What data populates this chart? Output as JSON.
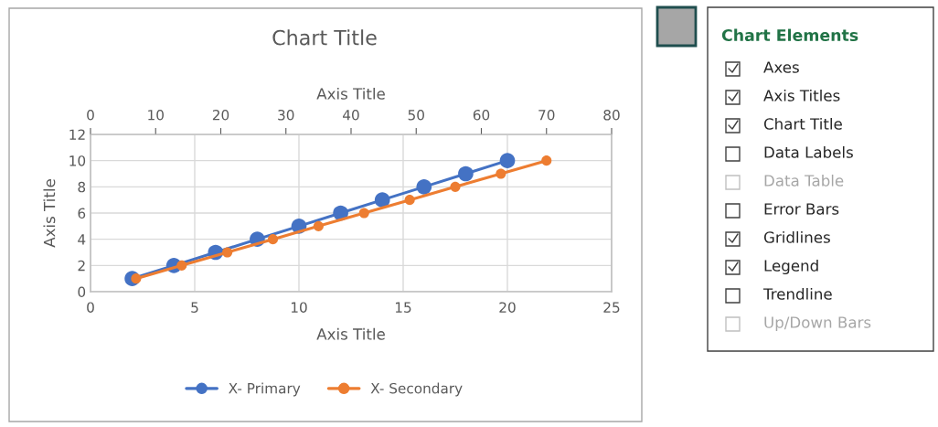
{
  "chart_data": {
    "type": "line",
    "title": "Chart Title",
    "xlabel": "Axis Title",
    "x2label": "Axis Title",
    "ylabel": "Axis Title",
    "series": [
      {
        "name": "X- Primary",
        "color": "#4472c4",
        "x": [
          2,
          4,
          6,
          8,
          10,
          12,
          14,
          16,
          18,
          20
        ],
        "values": [
          1,
          2,
          3,
          4,
          5,
          6,
          7,
          8,
          9,
          10
        ]
      },
      {
        "name": "X- Secondary",
        "color": "#ed7d31",
        "axis": "x2",
        "x": [
          7,
          14,
          21,
          28,
          35,
          42,
          49,
          56,
          63,
          70
        ],
        "values": [
          1,
          2,
          3,
          4,
          5,
          6,
          7,
          8,
          9,
          10
        ]
      }
    ],
    "xlim": [
      0,
      25
    ],
    "xticks": [
      0,
      5,
      10,
      15,
      20,
      25
    ],
    "x2lim": [
      0,
      80
    ],
    "x2ticks": [
      0,
      10,
      20,
      30,
      40,
      50,
      60,
      70,
      80
    ],
    "ylim": [
      0,
      12
    ],
    "yticks": [
      0,
      2,
      4,
      6,
      8,
      10,
      12
    ],
    "grid": true,
    "legend": "bottom",
    "marker": "circle",
    "line_style": "solid",
    "annotations": [
      "Chart Elements",
      "Axes",
      "Axis Titles",
      "Chart Title",
      "Data Labels",
      "Data Table",
      "Error Bars",
      "Gridlines",
      "Legend",
      "Trendline",
      "Up/Down Bars"
    ]
  }
}
